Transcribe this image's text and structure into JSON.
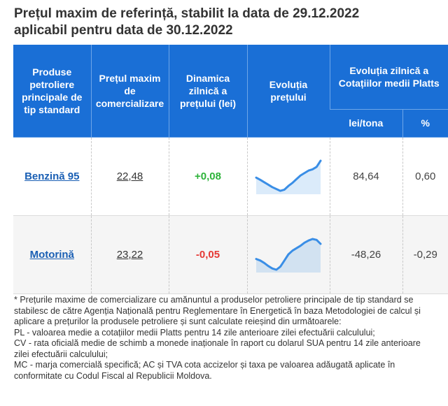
{
  "title": {
    "line1": "Prețul maxim de referință, stabilit la data de 29.12.2022",
    "line2": "aplicabil pentru data de 30.12.2022"
  },
  "table": {
    "headers": {
      "product": "Produse petroliere principale de tip standard",
      "max_price": "Prețul maxim de comercializare",
      "daily_change": "Dinamica zilnică a prețului (lei)",
      "evolution": "Evoluția prețului",
      "platts": "Evoluția zilnică a Cotațiilor medii Platts",
      "lei_ton": "lei/tona",
      "percent": "%"
    },
    "rows": [
      {
        "product": "Benzină 95",
        "price": "22,48",
        "change": "+0,08",
        "change_sign": "positive",
        "trend": [
          0.45,
          0.38,
          0.3,
          0.22,
          0.14,
          0.08,
          0.02,
          0.06,
          0.18,
          0.28,
          0.4,
          0.52,
          0.6,
          0.68,
          0.72,
          0.8,
          1.0
        ],
        "lei_ton": "84,64",
        "percent": "0,60"
      },
      {
        "product": "Motorină",
        "price": "23,22",
        "change": "-0,05",
        "change_sign": "negative",
        "trend": [
          0.35,
          0.3,
          0.22,
          0.12,
          0.04,
          0.0,
          0.1,
          0.3,
          0.5,
          0.62,
          0.7,
          0.78,
          0.88,
          0.95,
          1.0,
          0.97,
          0.84
        ],
        "lei_ton": "-48,26",
        "percent": "-0,29"
      }
    ]
  },
  "footnote": {
    "line1": "* Prețurile maxime de comercializare cu amănuntul a produselor petroliere principale de tip standard se stabilesc de către Agenția Națională pentru Reglementare în Energetică în baza Metodologiei de calcul și aplicare a prețurilor la produsele petroliere și sunt calculate reieșind din următoarele:",
    "line2": "PL - valoarea medie a cotațiilor medii Platts pentru 14 zile anterioare zilei efectuării calculului;",
    "line3": "CV - rata oficială medie de schimb a monede inaționale în raport cu dolarul SUA pentru 14 zile anterioare zilei efectuării calculului;",
    "line4": "MC - marja comercială specifică; AC și TVA cota accizelor și taxa pe valoarea adăugată aplicate în conformitate cu Codul Fiscal al Republicii Moldova."
  },
  "colors": {
    "header_bg": "#1a6fd6",
    "sparkline": "#3a8ee6",
    "positive": "#2db33a",
    "negative": "#e53935",
    "link": "#1a5fb4"
  }
}
